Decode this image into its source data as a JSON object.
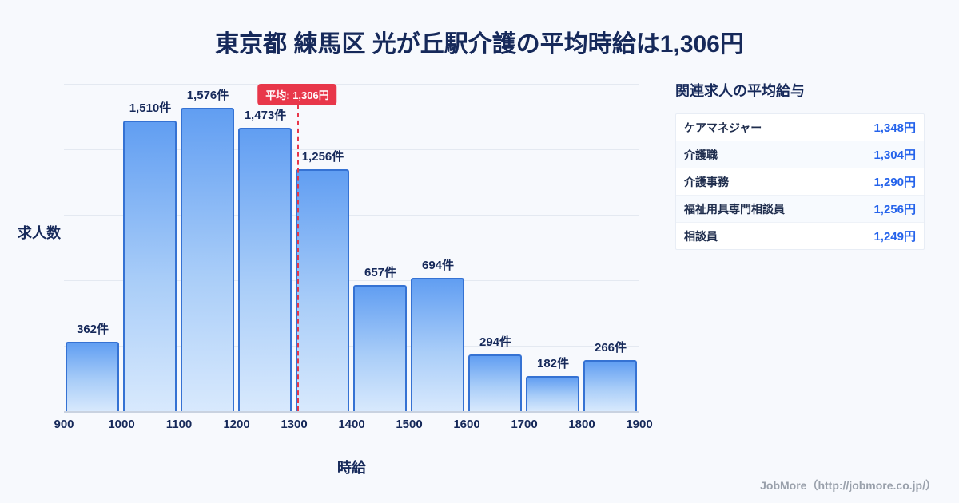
{
  "page": {
    "title": "東京都 練馬区 光が丘駅介護の平均時給は1,306円",
    "footer": "JobMore（http://jobmore.co.jp/）"
  },
  "chart_data": {
    "type": "bar",
    "title": "東京都 練馬区 光が丘駅介護の平均時給は1,306円",
    "xlabel": "時給",
    "ylabel": "求人数",
    "bin_edges": [
      900,
      1000,
      1100,
      1200,
      1300,
      1400,
      1500,
      1600,
      1700,
      1800,
      1900
    ],
    "values": [
      362,
      1510,
      1576,
      1473,
      1256,
      657,
      694,
      294,
      182,
      266
    ],
    "bar_labels": [
      "362件",
      "1,510件",
      "1,576件",
      "1,473件",
      "1,256件",
      "657件",
      "694件",
      "294件",
      "182件",
      "266件"
    ],
    "average": 1306,
    "average_label": "平均: 1,306円",
    "ylim": [
      0,
      1700
    ],
    "grid": true,
    "legend": "none"
  },
  "side_panel": {
    "title": "関連求人の平均給与",
    "rows": [
      {
        "label": "ケアマネジャー",
        "value": "1,348円"
      },
      {
        "label": "介護職",
        "value": "1,304円"
      },
      {
        "label": "介護事務",
        "value": "1,290円"
      },
      {
        "label": "福祉用具専門相談員",
        "value": "1,256円"
      },
      {
        "label": "相談員",
        "value": "1,249円"
      }
    ]
  },
  "colors": {
    "page_bg": "#f7f9fd",
    "title_navy": "#16295a",
    "accent_red": "#e8374a",
    "bar_top": "#619ef2",
    "bar_bottom": "#d8e9fd",
    "bar_border": "#3572d3",
    "value_blue": "#2563eb"
  }
}
